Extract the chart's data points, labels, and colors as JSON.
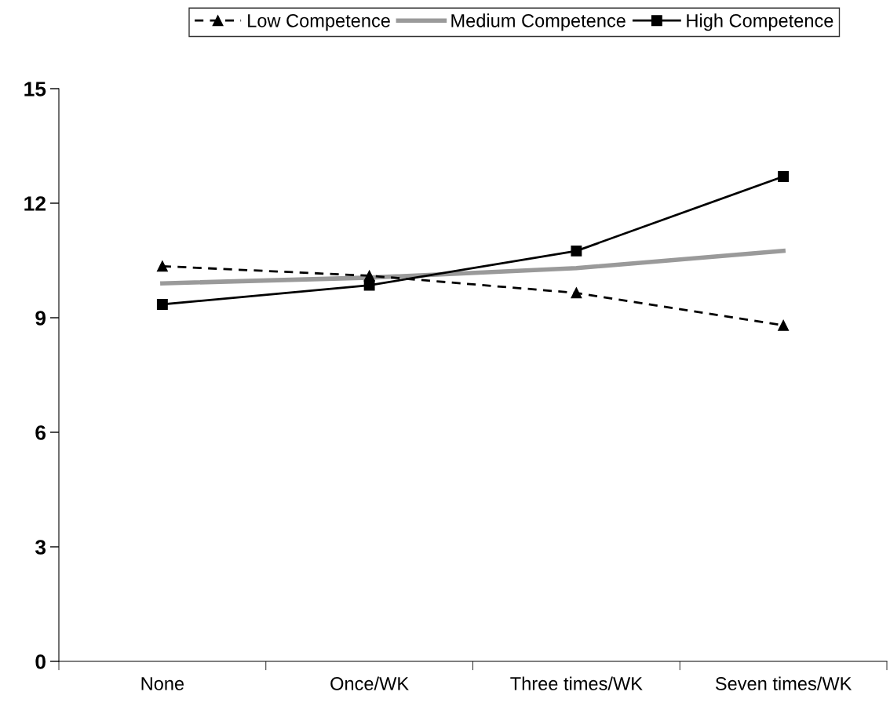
{
  "chart_data": {
    "type": "line",
    "categories": [
      "None",
      "Once/WK",
      "Three times/WK",
      "Seven times/WK"
    ],
    "series": [
      {
        "name": "Low Competence",
        "color": "#000000",
        "values": [
          10.35,
          10.1,
          9.65,
          8.8
        ],
        "marker": "triangle",
        "line_style": "dashed"
      },
      {
        "name": "Medium Competence",
        "color": "#9a9a9a",
        "values": [
          9.9,
          10.05,
          10.3,
          10.75
        ],
        "marker": "none",
        "line_style": "solid"
      },
      {
        "name": "High Competence",
        "color": "#000000",
        "values": [
          9.35,
          9.85,
          10.75,
          12.7
        ],
        "marker": "square",
        "line_style": "solid"
      }
    ],
    "ylim": [
      0,
      15
    ],
    "yticks": [
      0,
      3,
      6,
      9,
      12,
      15
    ],
    "grid": false,
    "legend": "top"
  }
}
